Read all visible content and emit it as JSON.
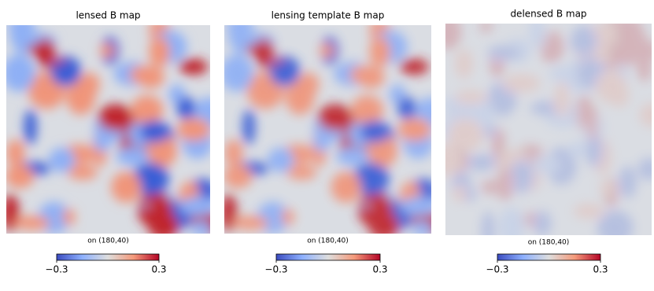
{
  "chart_data": [
    {
      "type": "heatmap",
      "title": "lensed B map",
      "subtitle": "on (180,40)",
      "clim": [
        -0.3,
        0.3
      ],
      "cticks": [
        {
          "value": -0.3,
          "label": "−0.3"
        },
        0.3
      ]
    },
    {
      "type": "heatmap",
      "title": "lensing template B map",
      "subtitle": "on (180,40)",
      "clim": [
        -0.3,
        0.3
      ],
      "cticks": [
        {
          "value": -0.3,
          "label": "−0.3"
        },
        0.3
      ]
    },
    {
      "type": "heatmap",
      "title": "delensed B map",
      "subtitle": "on (180,40)",
      "clim": [
        -0.3,
        0.3
      ],
      "cticks": [
        {
          "value": -0.3,
          "label": "−0.3"
        },
        0.3
      ]
    }
  ]
}
